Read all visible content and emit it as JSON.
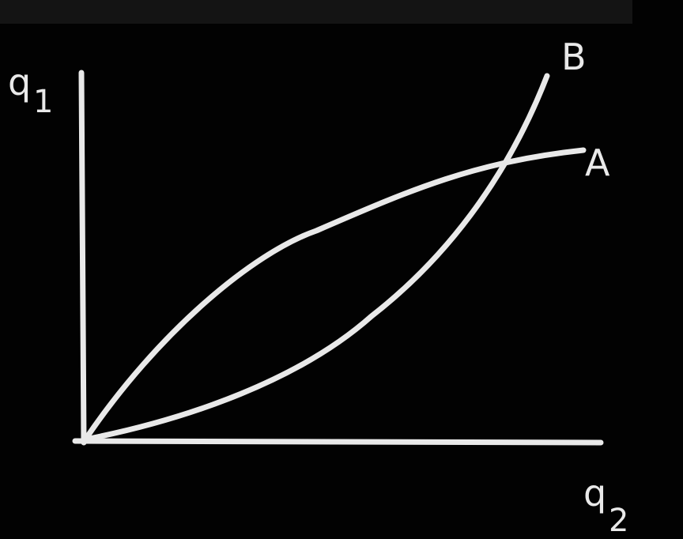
{
  "axes": {
    "vertical_label": "q",
    "vertical_subscript": "1",
    "horizontal_label": "q",
    "horizontal_subscript": "2"
  },
  "curves": [
    {
      "label": "A",
      "shape": "concave"
    },
    {
      "label": "B",
      "shape": "convex"
    }
  ],
  "colors": {
    "background": "#020202",
    "chalk": "#e9e9e9"
  }
}
